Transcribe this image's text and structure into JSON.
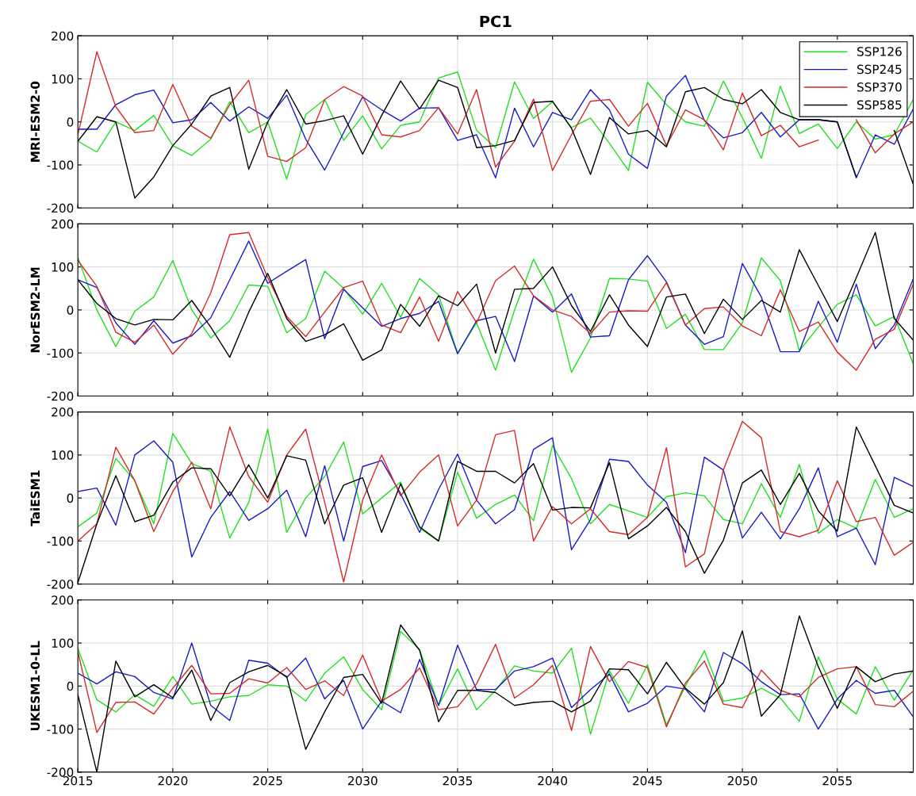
{
  "chart_data": [
    {
      "type": "line",
      "title": "PC1",
      "ylabel": "MRI-ESM2-0",
      "x": [
        2015,
        2016,
        2017,
        2018,
        2019,
        2020,
        2021,
        2022,
        2023,
        2024,
        2025,
        2026,
        2027,
        2028,
        2029,
        2030,
        2031,
        2032,
        2033,
        2034,
        2035,
        2036,
        2037,
        2038,
        2039,
        2040,
        2041,
        2042,
        2043,
        2044,
        2045,
        2046,
        2047,
        2048,
        2049,
        2050,
        2051,
        2052,
        2053,
        2054,
        2055,
        2056,
        2057,
        2058,
        2059
      ],
      "xlim": [
        2015,
        2059
      ],
      "xticks": [
        2015,
        2020,
        2025,
        2030,
        2035,
        2040,
        2045,
        2050,
        2055
      ],
      "ylim": [
        -200,
        200
      ],
      "yticks": [
        -200,
        -100,
        0,
        100,
        200
      ],
      "grid": true,
      "legend": "top right",
      "tick_labels": "y",
      "series": [
        {
          "name": "SSP126",
          "color": "#22e022",
          "values": [
            -45,
            -70,
            0,
            -20,
            15,
            -55,
            -78,
            -40,
            47,
            -25,
            0,
            -133,
            17,
            52,
            -43,
            14,
            -63,
            -8,
            0,
            102,
            116,
            -20,
            -60,
            93,
            8,
            47,
            -13,
            9,
            -50,
            -113,
            92,
            40,
            0,
            -10,
            95,
            10,
            -85,
            83,
            -27,
            -5,
            -62,
            0,
            -40,
            -30,
            52
          ]
        },
        {
          "name": "SSP245",
          "color": "#1a1ac8",
          "values": [
            -17,
            -17,
            40,
            63,
            74,
            -2,
            5,
            45,
            2,
            35,
            8,
            62,
            -40,
            -112,
            -25,
            58,
            28,
            2,
            32,
            33,
            -43,
            -30,
            -130,
            32,
            -58,
            22,
            5,
            75,
            28,
            -75,
            -108,
            60,
            108,
            3,
            -37,
            -25,
            22,
            -35,
            5,
            5,
            0,
            -130,
            -30,
            -52,
            30
          ]
        },
        {
          "name": "SSP370",
          "color": "#d42a2a",
          "values": [
            -30,
            163,
            35,
            -25,
            -20,
            87,
            -10,
            -38,
            40,
            97,
            -80,
            -92,
            -60,
            52,
            82,
            60,
            -30,
            -35,
            -20,
            33,
            -28,
            75,
            -105,
            -45,
            53,
            -113,
            -30,
            48,
            52,
            -10,
            43,
            -55,
            28,
            5,
            -65,
            67,
            -32,
            -8,
            -58,
            -42,
            null,
            5,
            -72,
            -28,
            0
          ]
        },
        {
          "name": "SSP585",
          "color": "#000000",
          "values": [
            -45,
            12,
            0,
            -177,
            -128,
            -55,
            -5,
            60,
            80,
            -110,
            0,
            75,
            -5,
            3,
            14,
            -75,
            15,
            95,
            30,
            97,
            80,
            -60,
            -55,
            -43,
            45,
            48,
            -15,
            -122,
            10,
            -28,
            -20,
            -58,
            70,
            80,
            52,
            42,
            75,
            22,
            5,
            5,
            0,
            -128,
            null,
            -20,
            -145
          ]
        }
      ]
    },
    {
      "type": "line",
      "ylabel": "NorESM2-LM",
      "x": [
        2015,
        2016,
        2017,
        2018,
        2019,
        2020,
        2021,
        2022,
        2023,
        2024,
        2025,
        2026,
        2027,
        2028,
        2029,
        2030,
        2031,
        2032,
        2033,
        2034,
        2035,
        2036,
        2037,
        2038,
        2039,
        2040,
        2041,
        2042,
        2043,
        2044,
        2045,
        2046,
        2047,
        2048,
        2049,
        2050,
        2051,
        2052,
        2053,
        2054,
        2055,
        2056,
        2057,
        2058,
        2059
      ],
      "xlim": [
        2015,
        2059
      ],
      "xticks": [
        2015,
        2020,
        2025,
        2030,
        2035,
        2040,
        2045,
        2050,
        2055
      ],
      "ylim": [
        -200,
        200
      ],
      "yticks": [
        -200,
        -100,
        0,
        100,
        200
      ],
      "grid": true,
      "tick_labels": "y",
      "series": [
        {
          "color": "#22e022",
          "values": [
            122,
            0,
            -85,
            -3,
            30,
            115,
            0,
            -65,
            -25,
            58,
            55,
            -53,
            -20,
            90,
            50,
            -10,
            62,
            -17,
            73,
            35,
            -100,
            -30,
            -140,
            0,
            118,
            30,
            -145,
            -65,
            73,
            72,
            67,
            -43,
            -10,
            -92,
            -92,
            -30,
            121,
            68,
            -95,
            -40,
            13,
            35,
            -37,
            -15,
            -125
          ]
        },
        {
          "color": "#1a1ac8",
          "values": [
            70,
            52,
            -30,
            -80,
            -25,
            -77,
            -60,
            -18,
            70,
            160,
            62,
            90,
            117,
            -67,
            48,
            5,
            -38,
            -20,
            -8,
            20,
            -102,
            -25,
            -15,
            -120,
            32,
            -5,
            37,
            -63,
            -60,
            70,
            126,
            65,
            -35,
            -80,
            -62,
            108,
            30,
            -97,
            -97,
            20,
            -75,
            60,
            -90,
            -35,
            72
          ]
        },
        {
          "color": "#d42a2a",
          "values": [
            115,
            55,
            -52,
            -75,
            -35,
            -103,
            -55,
            40,
            175,
            180,
            75,
            -15,
            -62,
            -5,
            52,
            67,
            -35,
            -53,
            30,
            -73,
            43,
            -30,
            68,
            102,
            33,
            0,
            -15,
            -55,
            -5,
            -2,
            -3,
            63,
            -35,
            3,
            7,
            -37,
            -60,
            47,
            -50,
            -28,
            -98,
            -140,
            -68,
            -45,
            60
          ]
        },
        {
          "color": "#000000",
          "values": [
            70,
            15,
            -20,
            -35,
            -22,
            -23,
            22,
            -40,
            -110,
            -5,
            85,
            -20,
            -73,
            -58,
            -32,
            -117,
            -93,
            13,
            -38,
            33,
            10,
            60,
            -100,
            48,
            50,
            100,
            10,
            -50,
            35,
            -35,
            -85,
            30,
            37,
            -55,
            25,
            -22,
            22,
            -5,
            140,
            57,
            -27,
            75,
            180,
            -20,
            -70
          ]
        }
      ]
    },
    {
      "type": "line",
      "ylabel": "TaiESM1",
      "x": [
        2015,
        2016,
        2017,
        2018,
        2019,
        2020,
        2021,
        2022,
        2023,
        2024,
        2025,
        2026,
        2027,
        2028,
        2029,
        2030,
        2031,
        2032,
        2033,
        2034,
        2035,
        2036,
        2037,
        2038,
        2039,
        2040,
        2041,
        2042,
        2043,
        2044,
        2045,
        2046,
        2047,
        2048,
        2049,
        2050,
        2051,
        2052,
        2053,
        2054,
        2055,
        2056,
        2057,
        2058,
        2059
      ],
      "xlim": [
        2015,
        2059
      ],
      "xticks": [
        2015,
        2020,
        2025,
        2030,
        2035,
        2040,
        2045,
        2050,
        2055
      ],
      "ylim": [
        -200,
        200
      ],
      "yticks": [
        -200,
        -100,
        0,
        100,
        200
      ],
      "grid": true,
      "tick_labels": "y",
      "series": [
        {
          "color": "#22e022",
          "values": [
            -67,
            -35,
            92,
            40,
            -60,
            150,
            80,
            62,
            -93,
            -10,
            160,
            -80,
            0,
            50,
            130,
            -37,
            0,
            37,
            -70,
            -100,
            60,
            -47,
            -15,
            7,
            -53,
            122,
            45,
            -60,
            -15,
            -30,
            -45,
            3,
            12,
            5,
            -50,
            -60,
            33,
            -45,
            78,
            -82,
            -50,
            -70,
            43,
            -45,
            -25
          ]
        },
        {
          "color": "#1a1ac8",
          "values": [
            15,
            23,
            -63,
            100,
            133,
            83,
            -137,
            -45,
            15,
            -52,
            -25,
            18,
            -90,
            75,
            -100,
            73,
            87,
            10,
            -80,
            20,
            102,
            -5,
            -60,
            -27,
            113,
            140,
            -120,
            -50,
            90,
            85,
            30,
            -10,
            -127,
            95,
            65,
            -93,
            -33,
            -95,
            -25,
            70,
            -90,
            -70,
            -155,
            48,
            27
          ]
        },
        {
          "color": "#d42a2a",
          "values": [
            -100,
            -60,
            118,
            40,
            -78,
            15,
            83,
            -25,
            165,
            50,
            -10,
            100,
            160,
            -10,
            -195,
            -5,
            100,
            5,
            60,
            100,
            -65,
            -5,
            147,
            157,
            -100,
            -20,
            -60,
            -25,
            -78,
            -85,
            -45,
            117,
            -160,
            -130,
            65,
            178,
            140,
            -78,
            -90,
            -75,
            40,
            -55,
            -45,
            -133,
            -103
          ]
        },
        {
          "color": "#000000",
          "values": [
            -197,
            -60,
            52,
            -55,
            -40,
            37,
            70,
            68,
            5,
            77,
            0,
            98,
            88,
            -60,
            30,
            47,
            -80,
            33,
            -67,
            -100,
            85,
            62,
            62,
            35,
            80,
            -28,
            -22,
            -23,
            82,
            -95,
            -65,
            -22,
            -78,
            -175,
            -98,
            35,
            65,
            -15,
            57,
            -30,
            -77,
            165,
            75,
            -17,
            -35
          ]
        }
      ]
    },
    {
      "type": "line",
      "ylabel": "UKESM1-0-LL",
      "x": [
        2015,
        2016,
        2017,
        2018,
        2019,
        2020,
        2021,
        2022,
        2023,
        2024,
        2025,
        2026,
        2027,
        2028,
        2029,
        2030,
        2031,
        2032,
        2033,
        2034,
        2035,
        2036,
        2037,
        2038,
        2039,
        2040,
        2041,
        2042,
        2043,
        2044,
        2045,
        2046,
        2047,
        2048,
        2049,
        2050,
        2051,
        2052,
        2053,
        2054,
        2055,
        2056,
        2057,
        2058,
        2059
      ],
      "xlim": [
        2015,
        2059
      ],
      "xticks": [
        2015,
        2020,
        2025,
        2030,
        2035,
        2040,
        2045,
        2050,
        2055
      ],
      "ylim": [
        -200,
        200
      ],
      "yticks": [
        -200,
        -100,
        0,
        100,
        200
      ],
      "grid": true,
      "series": [
        {
          "color": "#22e022",
          "values": [
            88,
            -32,
            -60,
            -20,
            -47,
            22,
            -42,
            -35,
            -25,
            -22,
            3,
            0,
            -35,
            30,
            68,
            -8,
            -55,
            127,
            85,
            -45,
            40,
            -55,
            -10,
            47,
            35,
            30,
            88,
            -112,
            35,
            -40,
            50,
            -90,
            0,
            82,
            -35,
            -28,
            -5,
            -28,
            -82,
            68,
            -30,
            -65,
            45,
            -33,
            38
          ]
        },
        {
          "color": "#1a1ac8",
          "values": [
            30,
            5,
            33,
            22,
            -15,
            -30,
            100,
            -45,
            -80,
            60,
            53,
            20,
            65,
            -30,
            13,
            -100,
            -35,
            -62,
            62,
            -45,
            95,
            -8,
            -8,
            35,
            45,
            65,
            -50,
            -8,
            28,
            -60,
            -40,
            0,
            -7,
            -60,
            78,
            52,
            10,
            -20,
            -18,
            -100,
            -30,
            13,
            -17,
            -10,
            -72
          ]
        },
        {
          "color": "#d42a2a",
          "values": [
            80,
            -108,
            -38,
            -37,
            -65,
            -5,
            48,
            -18,
            -17,
            17,
            7,
            43,
            -8,
            12,
            -22,
            72,
            -35,
            -8,
            42,
            -55,
            -48,
            5,
            97,
            -28,
            3,
            48,
            -103,
            92,
            10,
            57,
            43,
            -95,
            7,
            58,
            -42,
            -50,
            37,
            -10,
            -25,
            20,
            40,
            45,
            -43,
            -48,
            -12
          ]
        },
        {
          "color": "#000000",
          "values": [
            -20,
            -200,
            58,
            -25,
            3,
            -27,
            37,
            -80,
            8,
            33,
            48,
            22,
            -147,
            -60,
            20,
            27,
            -40,
            142,
            83,
            -83,
            -10,
            -10,
            -15,
            -45,
            -38,
            -35,
            -60,
            -35,
            40,
            38,
            -18,
            55,
            -5,
            -42,
            8,
            128,
            -70,
            -20,
            163,
            45,
            -52,
            45,
            10,
            28,
            35
          ]
        }
      ]
    }
  ]
}
